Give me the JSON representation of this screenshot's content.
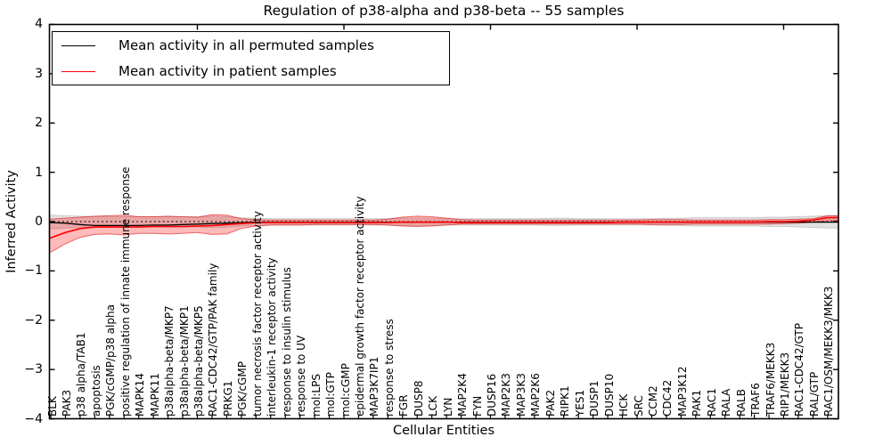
{
  "chart_data": {
    "type": "line",
    "title": "Regulation of p38-alpha and p38-beta -- 55 samples",
    "xlabel": "Cellular Entities",
    "ylabel": "Inferred Activity",
    "ylim": [
      -4,
      4
    ],
    "yticks": [
      4,
      3,
      2,
      1,
      0,
      -1,
      -2,
      -3,
      -4
    ],
    "grid": false,
    "zero_line": "dotted",
    "legend_position": "upper-left",
    "categories": [
      "BLK",
      "PAK3",
      "p38 alpha/TAB1",
      "apoptosis",
      "PGK/cGMP/p38 alpha",
      "positive regulation of innate immune response",
      "MAPK14",
      "MAPK11",
      "p38alpha-beta/MKP7",
      "p38alpha-beta/MKP1",
      "p38alpha-beta/MKP5",
      "RAC1-CDC42/GTP/PAK family",
      "PRKG1",
      "PGK/cGMP",
      "tumor necrosis factor receptor activity",
      "interleukin-1 receptor activity",
      "response to insulin stimulus",
      "response to UV",
      "mol:LPS",
      "mol:GTP",
      "mol:cGMP",
      "epidermal growth factor receptor activity",
      "MAP3K7IP1",
      "response to stress",
      "FGR",
      "DUSP8",
      "LCK",
      "LYN",
      "MAP2K4",
      "FYN",
      "DUSP16",
      "MAP2K3",
      "MAP3K3",
      "MAP2K6",
      "PAK2",
      "RIPK1",
      "YES1",
      "DUSP1",
      "DUSP10",
      "HCK",
      "SRC",
      "CCM2",
      "CDC42",
      "MAP3K12",
      "PAK1",
      "RAC1",
      "RALA",
      "RALB",
      "TRAF6",
      "TRAF6/MEKK3",
      "RIP1/MEKK3",
      "RAC1-CDC42/GTP",
      "RAL/GTP",
      "RAC1/OSM/MEKK3/MKK3"
    ],
    "series": [
      {
        "name": "Mean activity in all permuted samples",
        "color": "#000000",
        "values": [
          -0.02,
          -0.03,
          -0.06,
          -0.08,
          -0.08,
          -0.08,
          -0.08,
          -0.07,
          -0.07,
          -0.06,
          -0.05,
          -0.04,
          -0.03,
          -0.02,
          -0.01,
          -0.01,
          -0.01,
          -0.01,
          -0.01,
          -0.01,
          -0.01,
          -0.01,
          -0.01,
          -0.01,
          -0.01,
          -0.01,
          -0.01,
          -0.01,
          -0.01,
          -0.01,
          -0.01,
          -0.01,
          -0.01,
          -0.01,
          -0.01,
          -0.01,
          -0.01,
          -0.01,
          -0.01,
          -0.01,
          -0.01,
          -0.01,
          -0.01,
          -0.01,
          -0.01,
          -0.01,
          -0.01,
          -0.01,
          -0.01,
          -0.01,
          -0.01,
          -0.01,
          -0.01,
          -0.01
        ]
      },
      {
        "name": "Mean activity in patient samples",
        "color": "#ff0000",
        "values": [
          -0.33,
          -0.22,
          -0.14,
          -0.11,
          -0.11,
          -0.11,
          -0.11,
          -0.1,
          -0.1,
          -0.1,
          -0.09,
          -0.08,
          -0.06,
          -0.04,
          -0.02,
          -0.02,
          -0.02,
          -0.02,
          -0.02,
          -0.02,
          -0.02,
          -0.02,
          -0.02,
          -0.02,
          -0.01,
          -0.01,
          -0.01,
          -0.01,
          -0.02,
          -0.02,
          -0.02,
          -0.02,
          -0.02,
          -0.02,
          -0.02,
          -0.02,
          -0.02,
          -0.02,
          -0.02,
          -0.01,
          -0.01,
          -0.01,
          -0.01,
          -0.01,
          -0.01,
          -0.01,
          -0.01,
          -0.01,
          -0.01,
          0.0,
          0.0,
          0.01,
          0.03,
          0.08
        ]
      }
    ],
    "bands": [
      {
        "name": "permuted-samples-range",
        "fill": "#888888",
        "fill_opacity": 0.25,
        "edge": "#999999",
        "edge_opacity": 0.4,
        "upper": [
          0.13,
          0.12,
          0.11,
          0.1,
          0.1,
          0.1,
          0.1,
          0.1,
          0.1,
          0.1,
          0.1,
          0.11,
          0.1,
          0.08,
          0.07,
          0.06,
          0.06,
          0.06,
          0.06,
          0.06,
          0.06,
          0.06,
          0.06,
          0.06,
          0.07,
          0.07,
          0.07,
          0.06,
          0.06,
          0.06,
          0.06,
          0.06,
          0.06,
          0.06,
          0.07,
          0.07,
          0.06,
          0.06,
          0.06,
          0.06,
          0.06,
          0.06,
          0.07,
          0.07,
          0.08,
          0.08,
          0.08,
          0.08,
          0.08,
          0.09,
          0.09,
          0.1,
          0.11,
          0.12
        ],
        "lower": [
          -0.15,
          -0.13,
          -0.12,
          -0.11,
          -0.11,
          -0.11,
          -0.11,
          -0.11,
          -0.11,
          -0.11,
          -0.11,
          -0.12,
          -0.11,
          -0.09,
          -0.08,
          -0.07,
          -0.07,
          -0.07,
          -0.07,
          -0.07,
          -0.07,
          -0.07,
          -0.07,
          -0.07,
          -0.08,
          -0.08,
          -0.08,
          -0.07,
          -0.07,
          -0.07,
          -0.07,
          -0.07,
          -0.07,
          -0.07,
          -0.08,
          -0.08,
          -0.07,
          -0.07,
          -0.07,
          -0.07,
          -0.07,
          -0.07,
          -0.08,
          -0.08,
          -0.09,
          -0.09,
          -0.09,
          -0.09,
          -0.09,
          -0.1,
          -0.1,
          -0.11,
          -0.12,
          -0.13
        ]
      },
      {
        "name": "patient-samples-range",
        "fill": "#ff0000",
        "fill_opacity": 0.27,
        "edge": "#dd0000",
        "edge_opacity": 0.55,
        "upper": [
          0.05,
          0.07,
          0.09,
          0.11,
          0.12,
          0.13,
          0.1,
          0.1,
          0.11,
          0.1,
          0.09,
          0.14,
          0.13,
          0.06,
          0.04,
          0.03,
          0.03,
          0.03,
          0.03,
          0.03,
          0.03,
          0.03,
          0.03,
          0.05,
          0.09,
          0.11,
          0.1,
          0.07,
          0.04,
          0.03,
          0.03,
          0.03,
          0.03,
          0.03,
          0.03,
          0.03,
          0.03,
          0.03,
          0.03,
          0.03,
          0.03,
          0.04,
          0.04,
          0.04,
          0.03,
          0.03,
          0.03,
          0.03,
          0.03,
          0.04,
          0.04,
          0.05,
          0.06,
          0.12
        ],
        "lower": [
          -0.62,
          -0.45,
          -0.32,
          -0.26,
          -0.25,
          -0.27,
          -0.24,
          -0.24,
          -0.25,
          -0.24,
          -0.22,
          -0.26,
          -0.25,
          -0.14,
          -0.09,
          -0.07,
          -0.07,
          -0.07,
          -0.06,
          -0.06,
          -0.06,
          -0.06,
          -0.06,
          -0.07,
          -0.09,
          -0.1,
          -0.09,
          -0.07,
          -0.05,
          -0.05,
          -0.05,
          -0.05,
          -0.05,
          -0.05,
          -0.05,
          -0.05,
          -0.05,
          -0.05,
          -0.05,
          -0.05,
          -0.05,
          -0.06,
          -0.06,
          -0.06,
          -0.05,
          -0.05,
          -0.05,
          -0.05,
          -0.05,
          -0.05,
          -0.04,
          -0.03,
          -0.01,
          0.02
        ]
      }
    ]
  }
}
